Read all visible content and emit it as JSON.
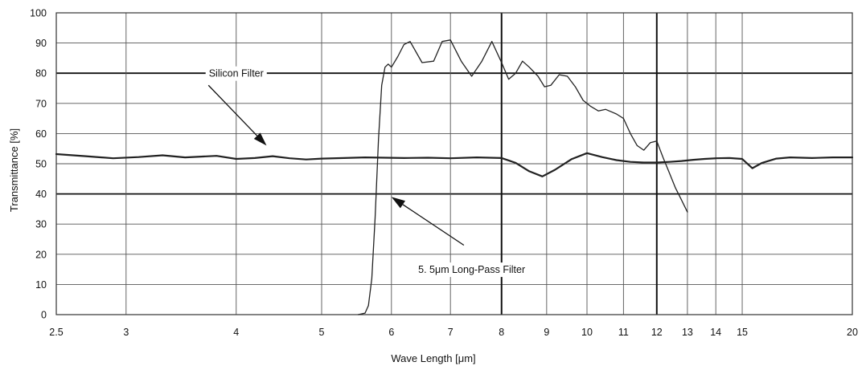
{
  "chart_data": {
    "type": "line",
    "title": "",
    "xlabel": "Wave Length [μm]",
    "ylabel": "Transmittance [%]",
    "xscale": "log",
    "xlim": [
      2.5,
      20
    ],
    "ylim": [
      0,
      100
    ],
    "grid": true,
    "legend": "none",
    "x_ticks": [
      2.5,
      3,
      4,
      5,
      6,
      7,
      8,
      9,
      10,
      11,
      12,
      13,
      14,
      15,
      20
    ],
    "x_tick_labels": [
      "2.5",
      "3",
      "4",
      "5",
      "6",
      "7",
      "8",
      "9",
      "10",
      "11",
      "12",
      "13",
      "14",
      "15",
      "20"
    ],
    "y_ticks": [
      0,
      10,
      20,
      30,
      40,
      50,
      60,
      70,
      80,
      90,
      100
    ],
    "y_tick_labels": [
      "0",
      "10",
      "20",
      "30",
      "40",
      "50",
      "60",
      "70",
      "80",
      "90",
      "100"
    ],
    "emphasized_gridlines": {
      "y": [
        40,
        80
      ],
      "x": [
        8,
        12
      ]
    },
    "series": [
      {
        "color": "#222222",
        "x": [
          2.5,
          2.7,
          2.9,
          3.1,
          3.3,
          3.5,
          3.8,
          4.0,
          4.2,
          4.4,
          4.6,
          4.8,
          5.0,
          5.3,
          5.6,
          5.9,
          6.2,
          6.6,
          7.0,
          7.5,
          8.0,
          8.3,
          8.6,
          8.9,
          9.2,
          9.6,
          10.0,
          10.4,
          10.8,
          11.2,
          11.6,
          12.0,
          12.4,
          12.8,
          13.2,
          13.6,
          14.0,
          14.5,
          15.0,
          15.4,
          15.8,
          16.4,
          17.0,
          18.0,
          19.0,
          20.0
        ],
        "values": [
          53.2,
          52.5,
          51.8,
          52.2,
          52.8,
          52.1,
          52.6,
          51.6,
          51.9,
          52.5,
          51.8,
          51.4,
          51.7,
          51.9,
          52.1,
          52.0,
          51.9,
          52.0,
          51.8,
          52.1,
          51.9,
          50.3,
          47.5,
          45.8,
          48.0,
          51.5,
          53.5,
          52.2,
          51.2,
          50.6,
          50.4,
          50.4,
          50.6,
          50.9,
          51.3,
          51.6,
          51.8,
          51.9,
          51.6,
          48.5,
          50.3,
          51.7,
          52.1,
          51.9,
          52.1,
          52.1
        ]
      },
      {
        "color": "#222222",
        "x": [
          5.5,
          5.6,
          5.65,
          5.7,
          5.75,
          5.8,
          5.85,
          5.9,
          5.95,
          6.0,
          6.1,
          6.2,
          6.3,
          6.5,
          6.7,
          6.85,
          7.0,
          7.2,
          7.4,
          7.6,
          7.8,
          8.0,
          8.15,
          8.3,
          8.45,
          8.6,
          8.8,
          8.95,
          9.1,
          9.3,
          9.5,
          9.7,
          9.9,
          10.1,
          10.3,
          10.5,
          10.8,
          11.0,
          11.2,
          11.4,
          11.6,
          11.8,
          12.0,
          12.2,
          12.4,
          12.6,
          12.8,
          13.0
        ],
        "values": [
          0,
          0.5,
          3.0,
          12.0,
          32.0,
          58.0,
          76.0,
          82.0,
          83.0,
          82.0,
          85.5,
          89.5,
          90.5,
          83.5,
          84.0,
          90.5,
          91.0,
          84.0,
          79.0,
          84.0,
          90.5,
          83.5,
          78.0,
          80.0,
          84.0,
          82.0,
          79.0,
          75.5,
          76.0,
          79.5,
          79.0,
          75.5,
          71.0,
          69.0,
          67.5,
          68.0,
          66.5,
          65.0,
          60.0,
          56.0,
          54.5,
          57.0,
          57.5,
          52.0,
          47.0,
          42.0,
          38.0,
          34.0
        ]
      }
    ],
    "annotations": [
      {
        "text": "Silicon Filter",
        "text_at": [
          4.0,
          80
        ],
        "arrow_from": [
          3.72,
          76
        ],
        "arrow_to": [
          4.33,
          56
        ]
      },
      {
        "text": "5. 5μm Long-Pass Filter",
        "text_at": [
          7.4,
          15
        ],
        "arrow_from": [
          7.25,
          23
        ],
        "arrow_to": [
          6.0,
          39
        ]
      }
    ]
  }
}
